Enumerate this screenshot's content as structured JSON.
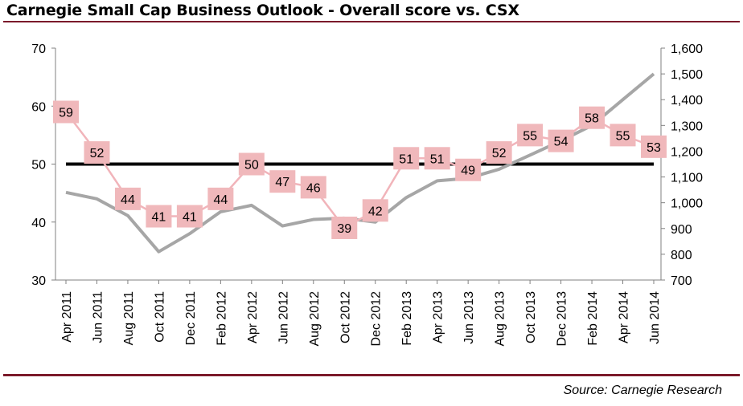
{
  "title": "Carnegie Small Cap Business Outlook - Overall score vs. CSX",
  "source": "Source: Carnegie Research",
  "chart_data": {
    "type": "line",
    "categories": [
      "Apr 2011",
      "Jun 2011",
      "Aug 2011",
      "Oct 2011",
      "Dec 2011",
      "Feb 2012",
      "Apr 2012",
      "Jun 2012",
      "Aug 2012",
      "Oct 2012",
      "Dec 2012",
      "Feb 2013",
      "Apr 2013",
      "Jun 2013",
      "Aug 2013",
      "Oct 2013",
      "Dec 2013",
      "Feb 2014",
      "Apr 2014",
      "Jun 2014"
    ],
    "left_axis": {
      "ylim": [
        30,
        70
      ],
      "ticks": [
        "30",
        "40",
        "50",
        "60",
        "70"
      ]
    },
    "right_axis": {
      "ylim": [
        700,
        1600
      ],
      "ticks": [
        "700",
        "800",
        "900",
        "1,000",
        "1,100",
        "1,200",
        "1,300",
        "1,400",
        "1,500",
        "1,600"
      ]
    },
    "reference_line": {
      "value": 50,
      "axis": "left",
      "color": "#000000"
    },
    "series": [
      {
        "values": [
          59,
          52,
          44,
          41,
          41,
          44,
          50,
          47,
          46,
          39,
          42,
          51,
          51,
          49,
          52,
          55,
          54,
          58,
          55,
          53
        ],
        "axis": "left",
        "color": "#f1b4ba",
        "label_bg": "#f0b8bb"
      },
      {
        "values": [
          1040,
          1015,
          950,
          810,
          880,
          965,
          990,
          910,
          935,
          940,
          925,
          1020,
          1085,
          1095,
          1130,
          1185,
          1240,
          1300,
          1400,
          1500
        ],
        "axis": "right",
        "color": "#a6a6a6"
      }
    ]
  }
}
